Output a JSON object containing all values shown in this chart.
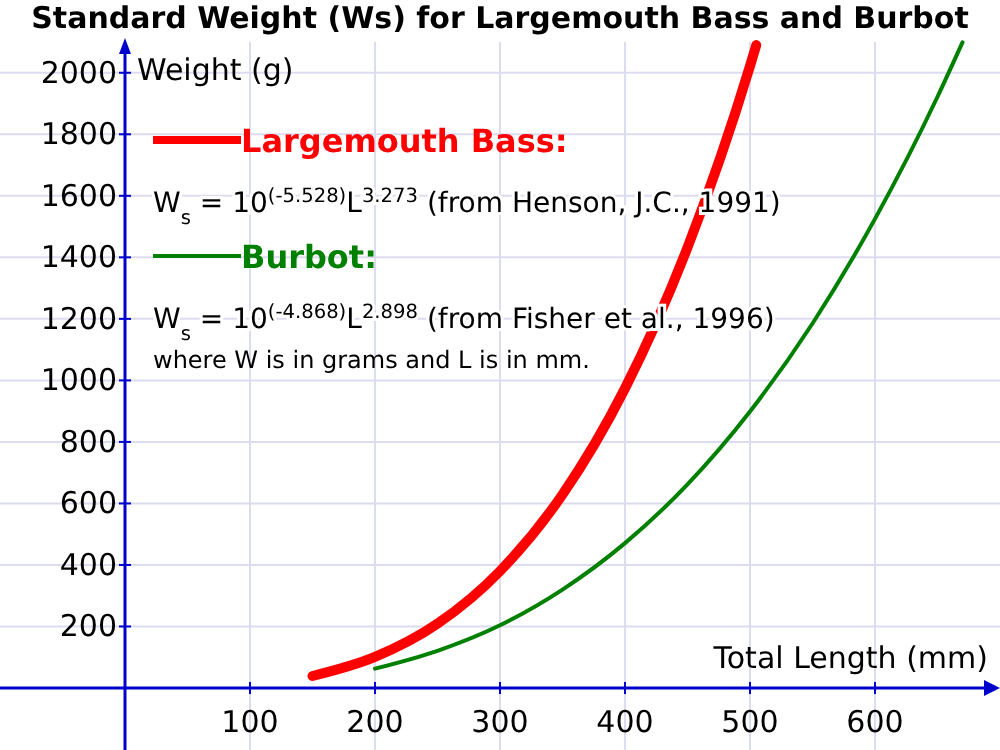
{
  "chart_data": {
    "type": "line",
    "title": "Standard Weight (Ws) for Largemouth Bass and Burbot",
    "xlabel": "Total Length (mm)",
    "ylabel": "Weight (g)",
    "xlim": [
      -100,
      700
    ],
    "ylim": [
      0,
      2100
    ],
    "xticks": [
      100,
      200,
      300,
      400,
      500,
      600
    ],
    "yticks": [
      200,
      400,
      600,
      800,
      1000,
      1200,
      1400,
      1600,
      1800,
      2000
    ],
    "grid": true,
    "legend": "top left",
    "series": [
      {
        "name": "Largemouth Bass:",
        "color": "#ff0000",
        "x": [
          150,
          200,
          250,
          300,
          350,
          400,
          450,
          500,
          505
        ],
        "values": [
          39,
          101,
          209,
          380,
          629,
          974,
          1432,
          2022,
          2090
        ]
      },
      {
        "name": "Burbot:",
        "color": "#008000",
        "x": [
          200,
          250,
          300,
          350,
          400,
          450,
          500,
          550,
          600,
          650,
          670
        ],
        "values": [
          63,
          121,
          204,
          320,
          471,
          662,
          899,
          1185,
          1525,
          1922,
          2099
        ]
      }
    ],
    "annotations": [
      "W$_{s}$ = 10$^{(-5.528)}$L$^{3.273}$ (from Henson, J.C., 1991)",
      "W$_{s}$ = 10$^{(-4.868)}$L$^{2.898}$ (from Fisher et al., 1996)",
      "where W is in grams and L is in mm."
    ]
  }
}
